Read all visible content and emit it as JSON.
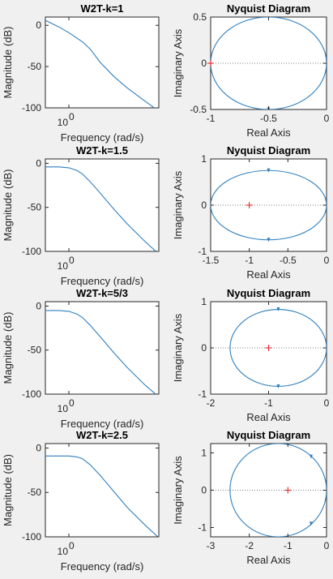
{
  "figure": {
    "background": "#f0f0f0",
    "axes_background": "#ffffff",
    "line_color": "#2f7fbf",
    "marker_color": "#e8262a",
    "axis_color": "#262626"
  },
  "chart_data": [
    {
      "id": "bode-1",
      "type": "line",
      "title": "W2T-k=1",
      "xlabel": "Frequency  (rad/s)",
      "ylabel": "Magnitude (dB)",
      "xscale": "log",
      "xlim": [
        0.3,
        100
      ],
      "ylim": [
        -100,
        10
      ],
      "xticks": [
        1
      ],
      "xticklabels": [
        "10",
        "0"
      ],
      "yticks": [
        0,
        -50,
        -100
      ],
      "yticklabels": [
        "0",
        "-50",
        "-100"
      ],
      "series": [
        {
          "x": [
            0.3,
            0.6,
            1,
            2,
            3,
            5,
            10,
            20,
            50,
            100
          ],
          "y": [
            6,
            -2,
            -9,
            -20,
            -29,
            -45,
            -62,
            -76,
            -92,
            -104
          ]
        }
      ]
    },
    {
      "id": "nyquist-1",
      "type": "line",
      "title": "Nyquist Diagram",
      "xlabel": "Real Axis",
      "ylabel": "Imaginary Axis",
      "xlim": [
        -1,
        0
      ],
      "ylim": [
        -0.5,
        0.5
      ],
      "xticks": [
        -1,
        -0.5,
        0
      ],
      "xticklabels": [
        "-1",
        "-0.5",
        "0"
      ],
      "yticks": [
        0.5,
        0,
        -0.5
      ],
      "yticklabels": [
        "0.5",
        "0",
        "-0.5"
      ],
      "curve": {
        "kind": "ellipse",
        "center": [
          -0.5,
          0
        ],
        "radii": [
          0.5,
          0.5
        ]
      },
      "arrows": [
        [
          -0.5,
          0.5
        ],
        [
          -0.5,
          -0.5
        ]
      ],
      "critical_point": [
        -1,
        0
      ]
    },
    {
      "id": "bode-2",
      "type": "line",
      "title": "W2T-k=1.5",
      "xlabel": "Frequency  (rad/s)",
      "ylabel": "Magnitude (dB)",
      "xscale": "log",
      "xlim": [
        0.3,
        100
      ],
      "ylim": [
        -100,
        5
      ],
      "xticks": [
        1
      ],
      "xticklabels": [
        "10",
        "0"
      ],
      "yticks": [
        0,
        -50,
        -100
      ],
      "yticklabels": [
        "0",
        "-50",
        "-100"
      ],
      "series": [
        {
          "x": [
            0.3,
            0.6,
            1,
            1.5,
            2,
            3,
            5,
            10,
            20,
            50,
            100
          ],
          "y": [
            -4,
            -4,
            -5,
            -8,
            -12,
            -21,
            -34,
            -52,
            -69,
            -89,
            -103
          ]
        }
      ]
    },
    {
      "id": "nyquist-2",
      "type": "line",
      "title": "Nyquist Diagram",
      "xlabel": "Real Axis",
      "ylabel": "Imaginary Axis",
      "xlim": [
        -1.5,
        0
      ],
      "ylim": [
        -1,
        1
      ],
      "xticks": [
        -1.5,
        -1,
        -0.5,
        0
      ],
      "xticklabels": [
        "-1.5",
        "-1",
        "-0.5",
        "0"
      ],
      "yticks": [
        1,
        0,
        -1
      ],
      "yticklabels": [
        "1",
        "0",
        "-1"
      ],
      "curve": {
        "kind": "ellipse",
        "center": [
          -0.75,
          0
        ],
        "radii": [
          0.75,
          0.75
        ]
      },
      "arrows": [
        [
          -0.75,
          0.75
        ],
        [
          -0.75,
          -0.75
        ]
      ],
      "critical_point": [
        -1,
        0
      ]
    },
    {
      "id": "bode-3",
      "type": "line",
      "title": "W2T-k=5/3",
      "xlabel": "Frequency  (rad/s)",
      "ylabel": "Magnitude (dB)",
      "xscale": "log",
      "xlim": [
        0.3,
        100
      ],
      "ylim": [
        -100,
        5
      ],
      "xticks": [
        1
      ],
      "xticklabels": [
        "10",
        "0"
      ],
      "yticks": [
        0,
        -50,
        -100
      ],
      "yticklabels": [
        "0",
        "-50",
        "-100"
      ],
      "series": [
        {
          "x": [
            0.3,
            0.6,
            1,
            1.5,
            2,
            3,
            5,
            10,
            20,
            50,
            100
          ],
          "y": [
            -5,
            -5,
            -6,
            -9,
            -13,
            -22,
            -35,
            -53,
            -70,
            -90,
            -103
          ]
        }
      ]
    },
    {
      "id": "nyquist-3",
      "type": "line",
      "title": "Nyquist Diagram",
      "xlabel": "Real Axis",
      "ylabel": "Imaginary Axis",
      "xlim": [
        -2,
        0
      ],
      "ylim": [
        -1,
        1
      ],
      "xticks": [
        -2,
        -1,
        0
      ],
      "xticklabels": [
        "-2",
        "-1",
        "0"
      ],
      "yticks": [
        1,
        0,
        -1
      ],
      "yticklabels": [
        "1",
        "0",
        "-1"
      ],
      "curve": {
        "kind": "ellipse",
        "center": [
          -0.833,
          0
        ],
        "radii": [
          0.833,
          0.833
        ]
      },
      "arrows": [
        [
          -0.833,
          0.833
        ],
        [
          -0.833,
          -0.833
        ]
      ],
      "critical_point": [
        -1,
        0
      ]
    },
    {
      "id": "bode-4",
      "type": "line",
      "title": "W2T-k=2.5",
      "xlabel": "Frequency  (rad/s)",
      "ylabel": "Magnitude (dB)",
      "xscale": "log",
      "xlim": [
        0.3,
        100
      ],
      "ylim": [
        -100,
        5
      ],
      "xticks": [
        1
      ],
      "xticklabels": [
        "10",
        "0"
      ],
      "yticks": [
        0,
        -50,
        -100
      ],
      "yticklabels": [
        "0",
        "-50",
        "-100"
      ],
      "series": [
        {
          "x": [
            0.3,
            0.6,
            1,
            1.5,
            2,
            3,
            5,
            10,
            20,
            50,
            100
          ],
          "y": [
            -9,
            -9,
            -9,
            -10,
            -12,
            -19,
            -31,
            -49,
            -67,
            -87,
            -101
          ]
        }
      ]
    },
    {
      "id": "nyquist-4",
      "type": "line",
      "title": "Nyquist Diagram",
      "xlabel": "Real Axis",
      "ylabel": "Imaginary Axis",
      "xlim": [
        -3,
        0
      ],
      "ylim": [
        -1.25,
        1.25
      ],
      "xticks": [
        -3,
        -2,
        -1,
        0
      ],
      "xticklabels": [
        "-3",
        "-2",
        "-1",
        "0"
      ],
      "yticks": [
        1,
        0,
        -1
      ],
      "yticklabels": [
        "1",
        "0",
        "-1"
      ],
      "curve": {
        "kind": "ellipse",
        "center": [
          -1.25,
          0
        ],
        "radii": [
          1.25,
          1.25
        ]
      },
      "arrows": [
        [
          -0.4,
          0.9
        ],
        [
          -0.4,
          -0.9
        ]
      ],
      "critical_point": [
        -1,
        0
      ]
    }
  ]
}
